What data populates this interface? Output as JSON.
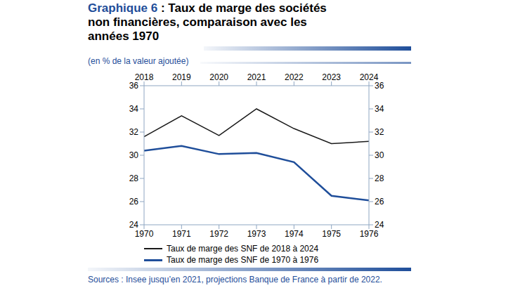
{
  "chart_data": {
    "type": "line",
    "title": "Graphique 6 : Taux de marge des sociétés non financières, comparaison avec les années 1970",
    "subtitle": "(en % de la valeur ajoutée)",
    "source": "Sources : Insee jusqu’en 2021, projections Banque de France à partir de 2022.",
    "xlim": [
      1970,
      1976
    ],
    "xticks": [
      1970,
      1971,
      1972,
      1973,
      1974,
      1975,
      1976
    ],
    "x2lim": [
      2018,
      2024
    ],
    "x2ticks": [
      2018,
      2019,
      2020,
      2021,
      2022,
      2023,
      2024
    ],
    "ylim": [
      24,
      36
    ],
    "yticks": [
      24,
      26,
      28,
      30,
      32,
      34,
      36
    ],
    "y2lim": [
      24,
      36
    ],
    "y2ticks": [
      24,
      26,
      28,
      30,
      32,
      34,
      36
    ],
    "grid": false,
    "series": [
      {
        "name": "Taux de marge des SNF de 2018 à 2024",
        "color": "#1a1a1a",
        "axis": "x2",
        "x": [
          2018,
          2019,
          2020,
          2021,
          2022,
          2023,
          2024
        ],
        "values": [
          31.6,
          33.4,
          31.7,
          34.0,
          32.3,
          31.0,
          31.2
        ]
      },
      {
        "name": "Taux de marge des SNF de 1970 à 1976",
        "color": "#1f4e9a",
        "x": [
          1970,
          1971,
          1972,
          1973,
          1974,
          1975,
          1976
        ],
        "values": [
          30.4,
          30.8,
          30.1,
          30.2,
          29.4,
          26.5,
          26.1
        ]
      }
    ]
  }
}
